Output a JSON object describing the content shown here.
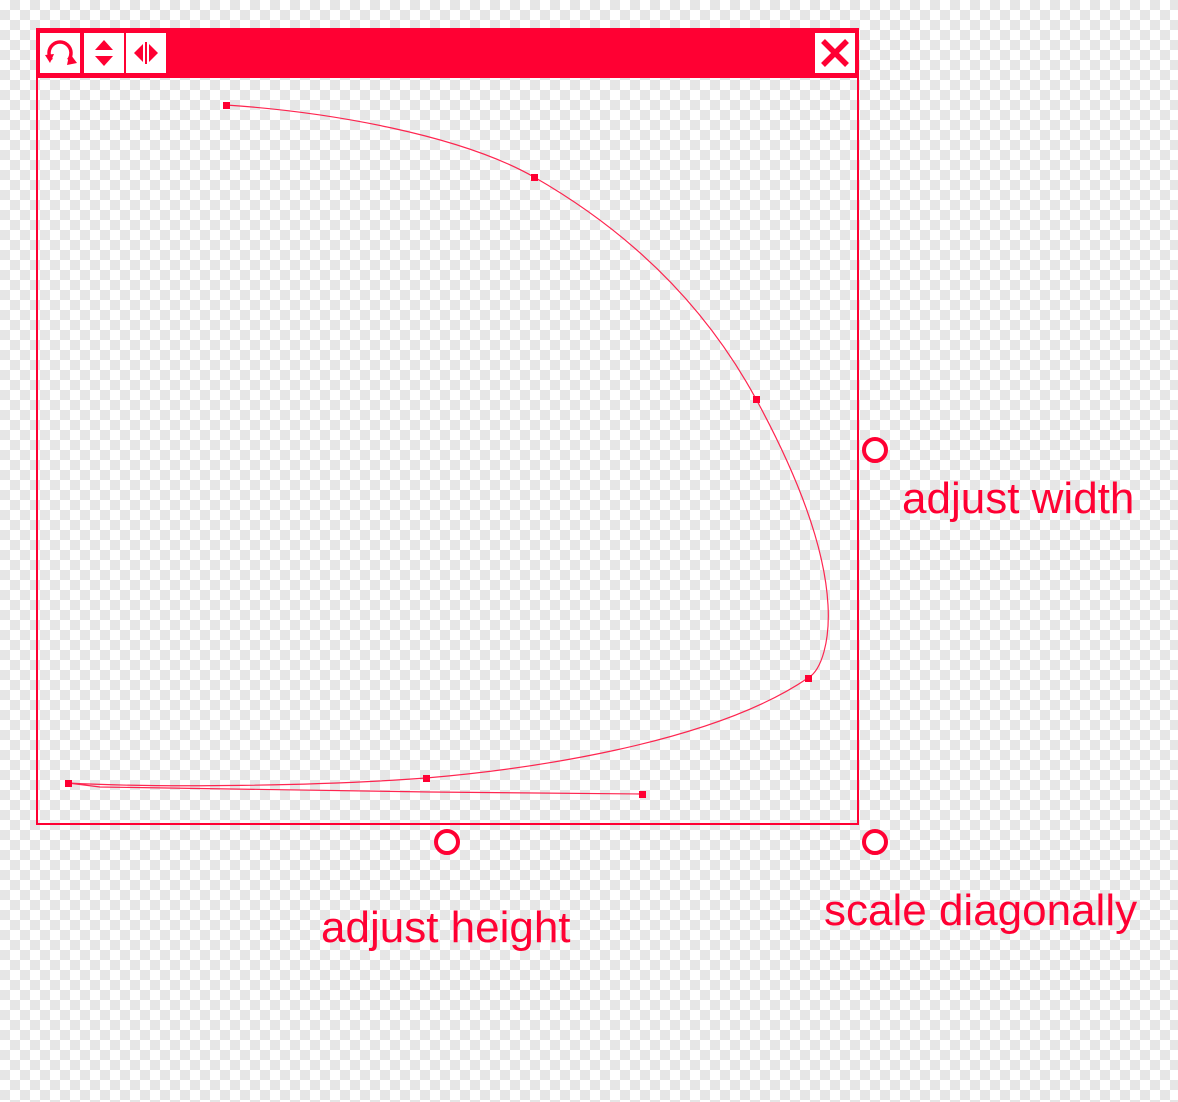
{
  "colors": {
    "accent": "#ff0033",
    "checker_light": "#ffffff",
    "checker_dark": "#e6e6e6"
  },
  "toolbar": {
    "buttons": [
      {
        "icon": "rotate-icon"
      },
      {
        "icon": "flip-vertical-icon"
      },
      {
        "icon": "flip-horizontal-icon"
      }
    ],
    "close_icon": "close-icon"
  },
  "handles": {
    "width_label": "adjust width",
    "height_label": "adjust height",
    "diagonal_label": "scale diagonally"
  }
}
